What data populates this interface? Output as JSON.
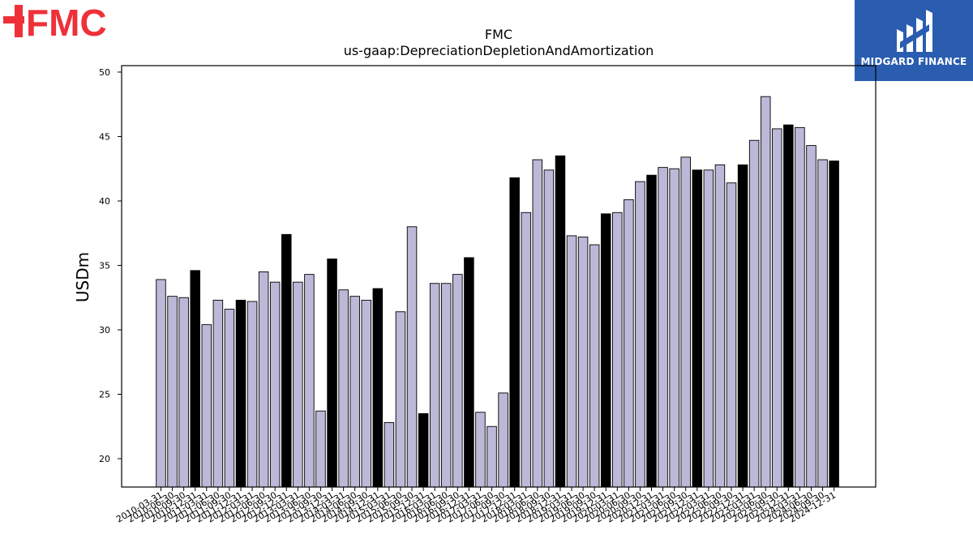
{
  "brand": {
    "company_logo_text": "FMC",
    "company_logo_color": "#ee3139",
    "partner_logo_text": "MIDGARD FINANCE",
    "partner_logo_bg": "#2a5db0"
  },
  "chart_data": {
    "type": "bar",
    "title": "FMC",
    "subtitle": "us-gaap:DepreciationDepletionAndAmortization",
    "xlabel": "",
    "ylabel": "USDm",
    "ylim": [
      17.8,
      50.5
    ],
    "yticks": [
      20,
      25,
      30,
      35,
      40,
      45,
      50
    ],
    "grid": false,
    "bar_color": "#bcb8d8",
    "highlight_color": "#000000",
    "categories": [
      "2010-03-31",
      "2010-06-30",
      "2010-09-30",
      "2010-12-31",
      "2011-03-31",
      "2011-06-30",
      "2011-09-30",
      "2011-12-31",
      "2012-03-31",
      "2012-06-30",
      "2012-09-30",
      "2012-12-31",
      "2013-03-31",
      "2013-06-30",
      "2013-09-30",
      "2013-12-31",
      "2014-03-31",
      "2014-06-30",
      "2014-09-30",
      "2014-12-31",
      "2015-03-31",
      "2015-06-30",
      "2015-09-30",
      "2015-12-31",
      "2016-03-31",
      "2016-06-30",
      "2016-09-30",
      "2016-12-31",
      "2017-03-31",
      "2017-06-30",
      "2017-09-30",
      "2017-12-31",
      "2018-03-31",
      "2018-06-30",
      "2018-09-30",
      "2018-12-31",
      "2019-03-31",
      "2019-06-30",
      "2019-09-30",
      "2019-12-31",
      "2020-03-31",
      "2020-06-30",
      "2020-09-30",
      "2020-12-31",
      "2021-03-31",
      "2021-06-30",
      "2021-09-30",
      "2021-12-31",
      "2022-03-31",
      "2022-06-30",
      "2022-09-30",
      "2022-12-31",
      "2023-03-31",
      "2023-06-30",
      "2023-09-30",
      "2023-12-31",
      "2024-03-31",
      "2024-06-30",
      "2024-09-30",
      "2024-12-31"
    ],
    "values": [
      33.9,
      32.6,
      32.5,
      34.6,
      30.4,
      32.3,
      31.6,
      32.3,
      32.2,
      34.5,
      33.7,
      37.4,
      33.7,
      34.3,
      23.7,
      35.5,
      33.1,
      32.6,
      32.3,
      33.2,
      22.8,
      31.4,
      38.0,
      23.5,
      33.6,
      33.6,
      34.3,
      35.6,
      23.6,
      22.5,
      25.1,
      41.8,
      39.1,
      43.2,
      42.4,
      43.5,
      37.3,
      37.2,
      36.6,
      39.0,
      39.1,
      40.1,
      41.5,
      42.0,
      42.6,
      42.5,
      43.4,
      42.4,
      42.4,
      42.8,
      41.4,
      42.8,
      44.7,
      48.1,
      45.6,
      45.9,
      45.7,
      44.3,
      43.2,
      43.1
    ],
    "highlighted": [
      false,
      false,
      false,
      true,
      false,
      false,
      false,
      true,
      false,
      false,
      false,
      true,
      false,
      false,
      false,
      true,
      false,
      false,
      false,
      true,
      false,
      false,
      false,
      true,
      false,
      false,
      false,
      true,
      false,
      false,
      false,
      true,
      false,
      false,
      false,
      true,
      false,
      false,
      false,
      true,
      false,
      false,
      false,
      true,
      false,
      false,
      false,
      true,
      false,
      false,
      false,
      true,
      false,
      false,
      false,
      true,
      false,
      false,
      false,
      true
    ]
  }
}
